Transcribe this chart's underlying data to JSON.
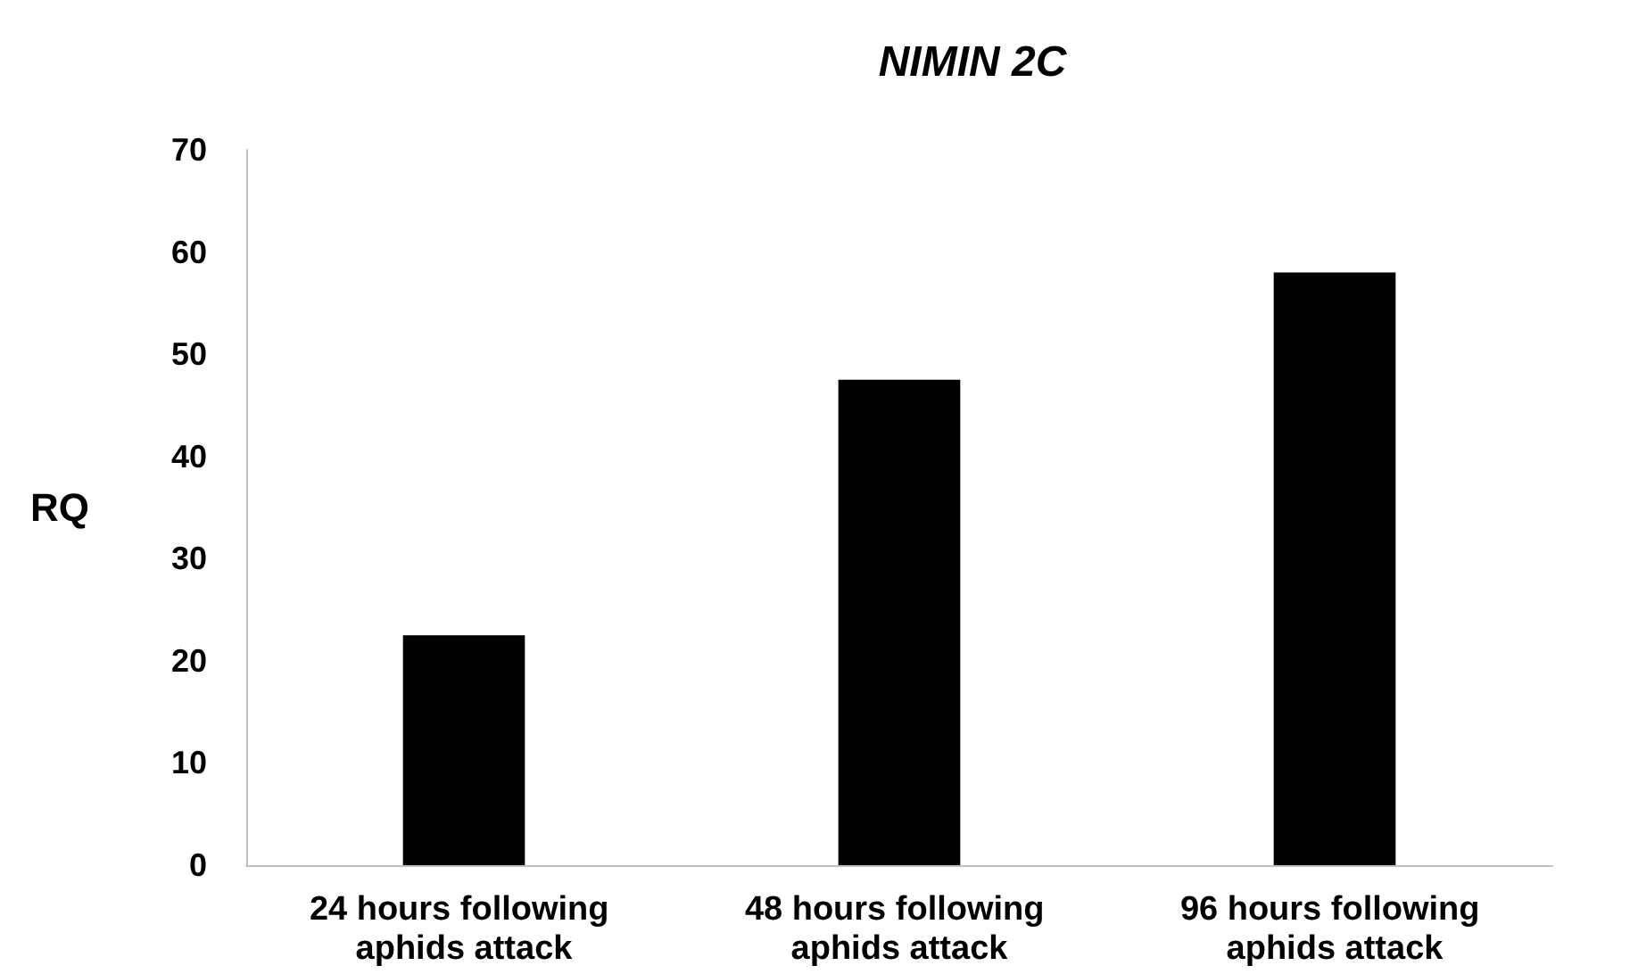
{
  "chart_data": {
    "type": "bar",
    "title": "NIMIN 2C",
    "ylabel": "RQ",
    "categories": [
      "24 hours following aphids attack",
      "48 hours following aphids attack",
      "96 hours following aphids attack"
    ],
    "values": [
      22.5,
      47.5,
      58
    ],
    "color": "#000000",
    "ylim": [
      0,
      70
    ],
    "yticks": [
      0,
      10,
      20,
      30,
      40,
      50,
      60,
      70
    ],
    "grid": false
  }
}
